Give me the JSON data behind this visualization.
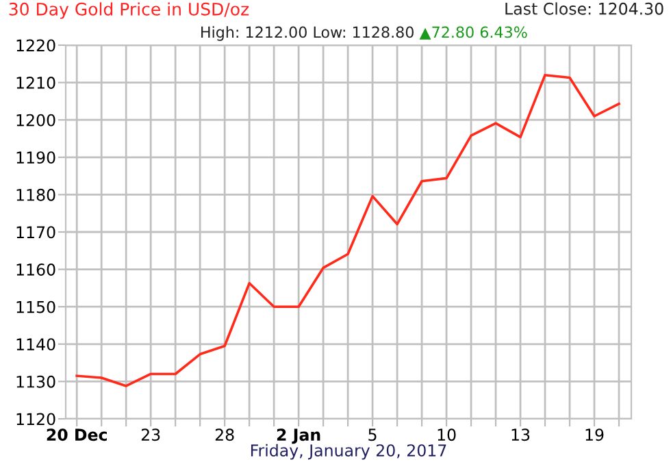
{
  "chart_data": {
    "type": "line",
    "title": "30 Day Gold Price in USD/oz",
    "subtitle": "High: 1212.00 Low: 1128.80",
    "xlabel": "Friday, January 20, 2017",
    "annotations": [
      "Last Close: 1204.30",
      "▲72.80 6.43%"
    ],
    "categories": [
      "20 Dec",
      null,
      null,
      "23",
      null,
      null,
      "28",
      null,
      null,
      "2 Jan",
      null,
      null,
      "5",
      null,
      null,
      "10",
      null,
      null,
      "13",
      null,
      null,
      "19",
      null
    ],
    "series": [
      {
        "color": "#ff2a1a",
        "values": [
          1131.5,
          1131.0,
          1128.8,
          1132.0,
          1132.0,
          1137.3,
          1139.5,
          1156.3,
          1150.0,
          1150.0,
          1160.4,
          1164.1,
          1179.6,
          1172.1,
          1183.6,
          1184.4,
          1195.8,
          1199.1,
          1195.4,
          1212.0,
          1211.3,
          1201.0,
          1204.3
        ]
      }
    ],
    "ylim": [
      1120,
      1220
    ],
    "yticks": [
      1120,
      1130,
      1140,
      1150,
      1160,
      1170,
      1180,
      1190,
      1200,
      1210,
      1220
    ],
    "grid": true,
    "legend": false,
    "marker": "none",
    "line_style": "solid"
  }
}
